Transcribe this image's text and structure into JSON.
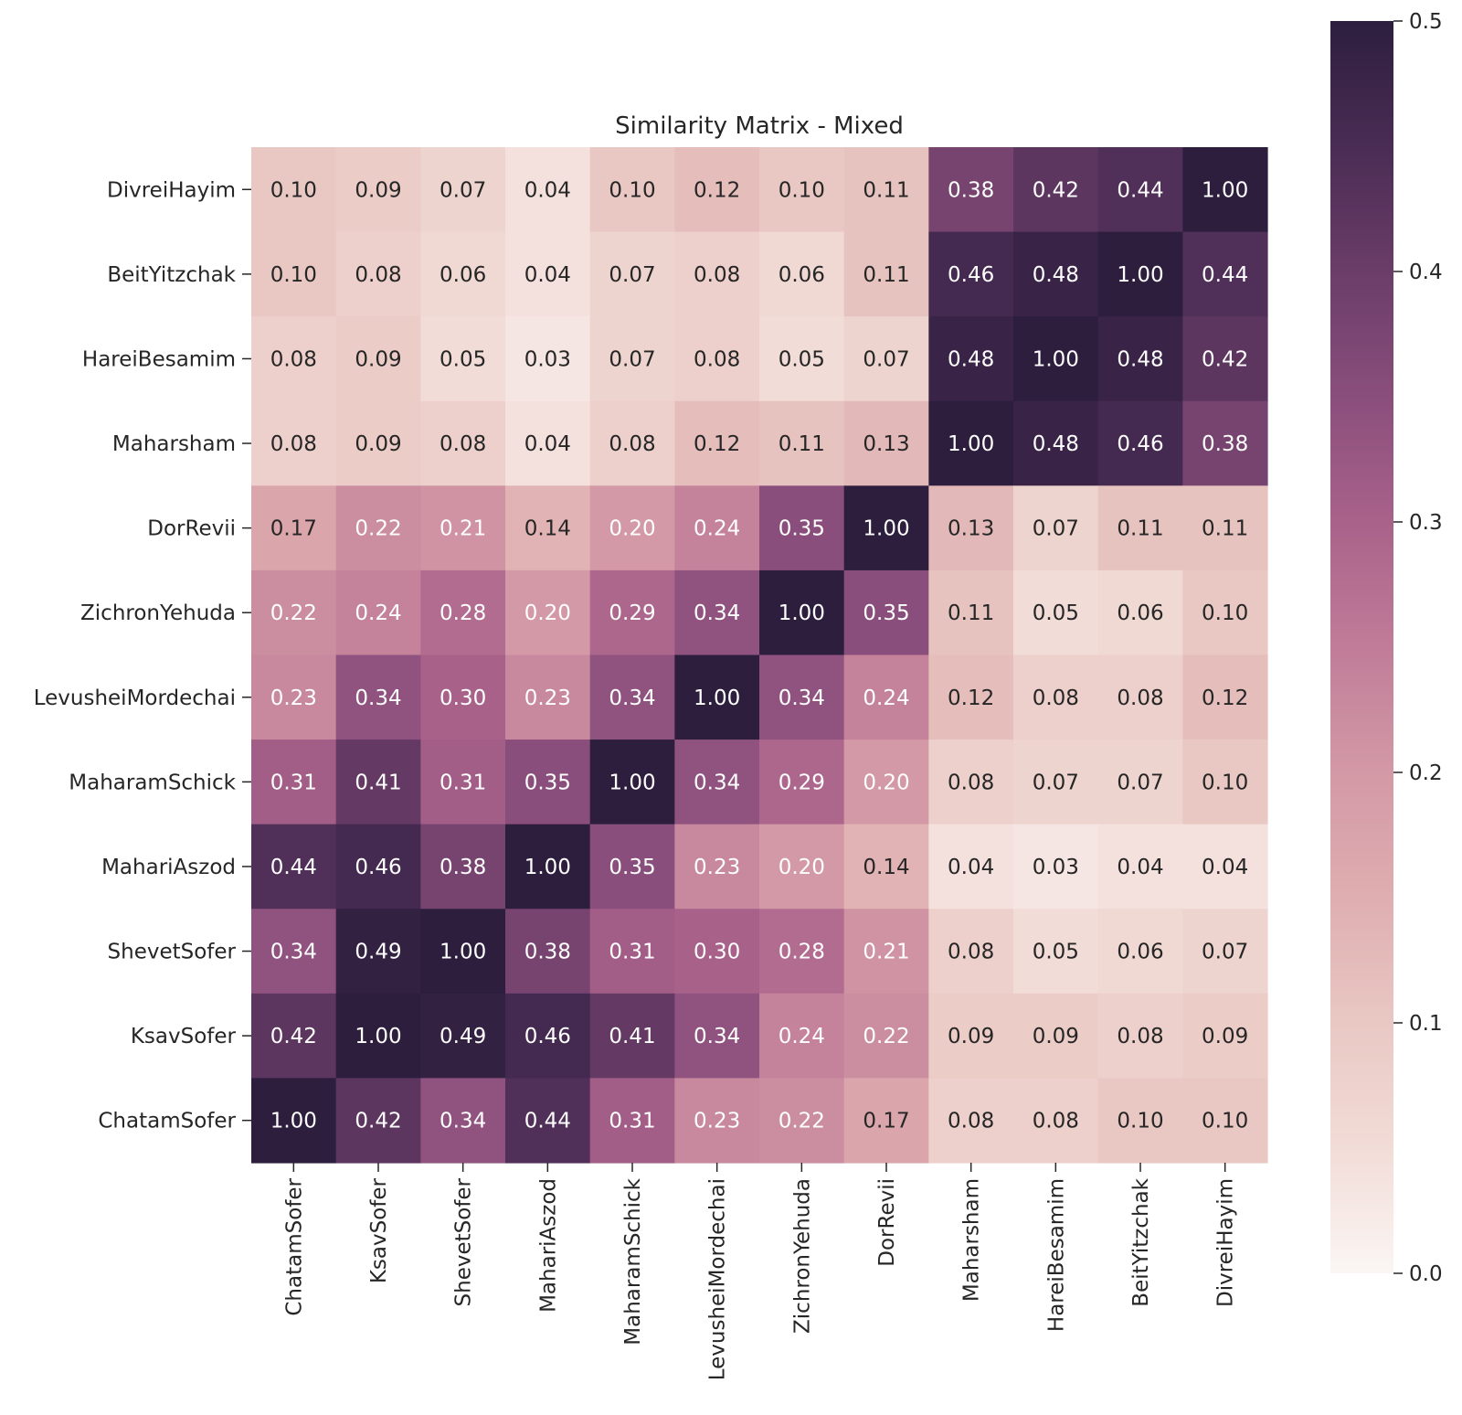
{
  "chart_data": {
    "type": "heatmap",
    "title": "Similarity Matrix - Mixed",
    "xlabel": "",
    "ylabel": "",
    "row_labels": [
      "DivreiHayim",
      "BeitYitzchak",
      "HareiBesamim",
      "Maharsham",
      "DorRevii",
      "ZichronYehuda",
      "LevusheiMordechai",
      "MaharamSchick",
      "MahariAszod",
      "ShevetSofer",
      "KsavSofer",
      "ChatamSofer"
    ],
    "col_labels": [
      "ChatamSofer",
      "KsavSofer",
      "ShevetSofer",
      "MahariAszod",
      "MaharamSchick",
      "LevusheiMordechai",
      "ZichronYehuda",
      "DorRevii",
      "Maharsham",
      "HareiBesamim",
      "BeitYitzchak",
      "DivreiHayim"
    ],
    "values": [
      [
        0.1,
        0.09,
        0.07,
        0.04,
        0.1,
        0.12,
        0.1,
        0.11,
        0.38,
        0.42,
        0.44,
        1.0
      ],
      [
        0.1,
        0.08,
        0.06,
        0.04,
        0.07,
        0.08,
        0.06,
        0.11,
        0.46,
        0.48,
        1.0,
        0.44
      ],
      [
        0.08,
        0.09,
        0.05,
        0.03,
        0.07,
        0.08,
        0.05,
        0.07,
        0.48,
        1.0,
        0.48,
        0.42
      ],
      [
        0.08,
        0.09,
        0.08,
        0.04,
        0.08,
        0.12,
        0.11,
        0.13,
        1.0,
        0.48,
        0.46,
        0.38
      ],
      [
        0.17,
        0.22,
        0.21,
        0.14,
        0.2,
        0.24,
        0.35,
        1.0,
        0.13,
        0.07,
        0.11,
        0.11
      ],
      [
        0.22,
        0.24,
        0.28,
        0.2,
        0.29,
        0.34,
        1.0,
        0.35,
        0.11,
        0.05,
        0.06,
        0.1
      ],
      [
        0.23,
        0.34,
        0.3,
        0.23,
        0.34,
        1.0,
        0.34,
        0.24,
        0.12,
        0.08,
        0.08,
        0.12
      ],
      [
        0.31,
        0.41,
        0.31,
        0.35,
        1.0,
        0.34,
        0.29,
        0.2,
        0.08,
        0.07,
        0.07,
        0.1
      ],
      [
        0.44,
        0.46,
        0.38,
        1.0,
        0.35,
        0.23,
        0.2,
        0.14,
        0.04,
        0.03,
        0.04,
        0.04
      ],
      [
        0.34,
        0.49,
        1.0,
        0.38,
        0.31,
        0.3,
        0.28,
        0.21,
        0.08,
        0.05,
        0.06,
        0.07
      ],
      [
        0.42,
        1.0,
        0.49,
        0.46,
        0.41,
        0.34,
        0.24,
        0.22,
        0.09,
        0.09,
        0.08,
        0.09
      ],
      [
        1.0,
        0.42,
        0.34,
        0.44,
        0.31,
        0.23,
        0.22,
        0.17,
        0.08,
        0.08,
        0.1,
        0.1
      ]
    ],
    "value_format_decimals": 2,
    "colorbar": {
      "range": [
        0.0,
        0.5
      ],
      "ticks": [
        "0.0",
        "0.1",
        "0.2",
        "0.3",
        "0.4",
        "0.5"
      ],
      "tick_values": [
        0.0,
        0.1,
        0.2,
        0.3,
        0.4,
        0.5
      ],
      "placement": "right"
    },
    "colormap": [
      "#fbf6f4",
      "#f2dcd7",
      "#e9c8c3",
      "#dfaeb0",
      "#d399a6",
      "#c07c98",
      "#a8628a",
      "#8a4e7c",
      "#6a3d68",
      "#4a2c54",
      "#2d1e3e"
    ],
    "grid": false
  }
}
